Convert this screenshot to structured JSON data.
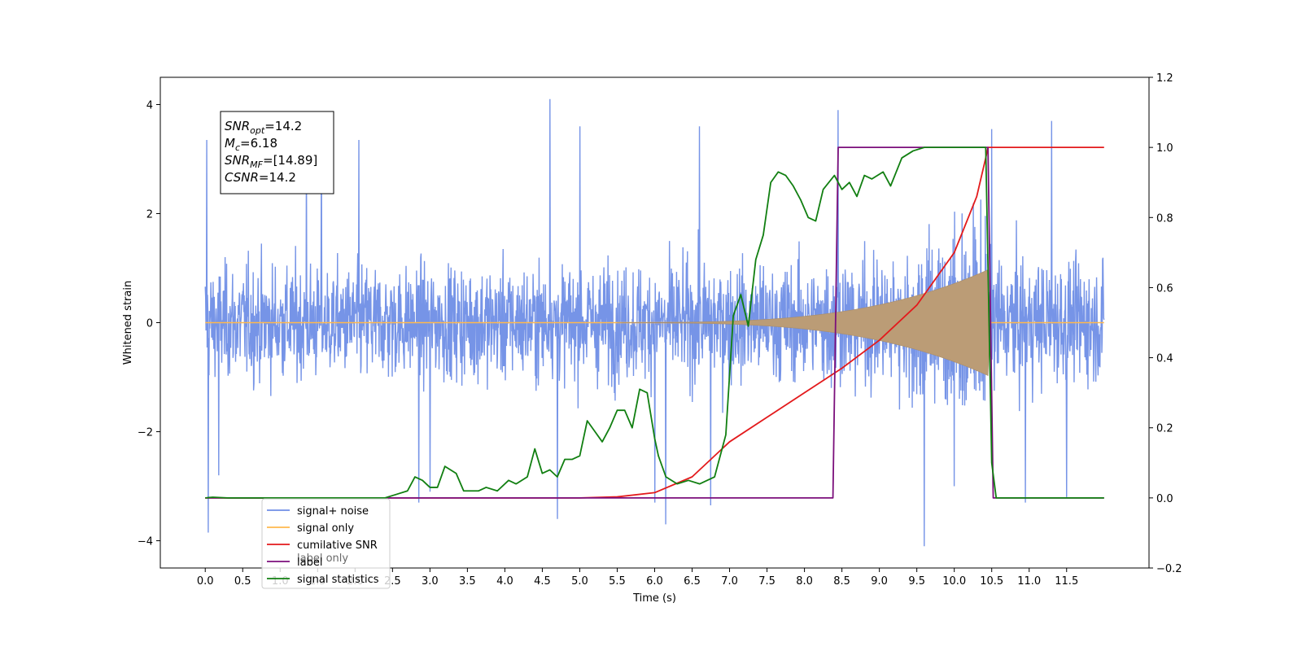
{
  "chart_data": {
    "type": "line",
    "title": "",
    "xlabel": "Time (s)",
    "ylabel": "Whitened strain",
    "y2label": "",
    "xlim": [
      -0.6,
      12.6
    ],
    "ylim": [
      -4.5,
      4.5
    ],
    "y2lim": [
      -0.2,
      1.2
    ],
    "xticks": [
      "0.0",
      "0.5",
      "1.0",
      "1.5",
      "2.0",
      "2.5",
      "3.0",
      "3.5",
      "4.0",
      "4.5",
      "5.0",
      "5.5",
      "6.0",
      "6.5",
      "7.0",
      "7.5",
      "8.0",
      "8.5",
      "9.0",
      "9.5",
      "10.0",
      "10.5",
      "11.0",
      "11.5"
    ],
    "yticks": [
      "−4",
      "−2",
      "0",
      "2",
      "4"
    ],
    "y2ticks": [
      "−0.2",
      "0.0",
      "0.2",
      "0.4",
      "0.6",
      "0.8",
      "1.0",
      "1.2"
    ],
    "grid": false,
    "legend_position": "lower-left",
    "annotation": {
      "lines": [
        {
          "sym": "SNR",
          "sub": "opt",
          "value": "=14.2"
        },
        {
          "sym": "M",
          "sub": "c",
          "value": "=6.18"
        },
        {
          "sym": "SNR",
          "sub": "MF",
          "value": "=[14.89]"
        },
        {
          "sym": "CSNR",
          "sub": "",
          "value": "=14.2"
        }
      ]
    },
    "series": [
      {
        "name": "signal+ noise",
        "color": "#6f8ee6",
        "axis": "left",
        "x_range": [
          0.0,
          12.0
        ],
        "envelope": [
          1.7,
          1.8,
          1.75,
          1.7,
          1.8,
          1.7,
          1.75,
          1.8,
          1.75,
          1.7,
          1.8,
          1.75,
          1.8,
          1.85,
          1.8,
          1.8,
          1.85,
          1.9,
          1.9,
          1.95,
          2.0,
          2.0,
          1.9,
          1.8
        ],
        "peaks": [
          {
            "x": 0.02,
            "y": 3.35
          },
          {
            "x": 0.04,
            "y": -3.85
          },
          {
            "x": 0.18,
            "y": -2.8
          },
          {
            "x": 1.35,
            "y": 3.3
          },
          {
            "x": 1.55,
            "y": 3.3
          },
          {
            "x": 2.05,
            "y": 3.35
          },
          {
            "x": 2.85,
            "y": -3.3
          },
          {
            "x": 3.0,
            "y": -3.1
          },
          {
            "x": 4.6,
            "y": 4.1
          },
          {
            "x": 4.7,
            "y": -3.6
          },
          {
            "x": 5.0,
            "y": 3.6
          },
          {
            "x": 6.0,
            "y": -3.3
          },
          {
            "x": 6.15,
            "y": -3.7
          },
          {
            "x": 6.6,
            "y": 3.6
          },
          {
            "x": 6.75,
            "y": -3.35
          },
          {
            "x": 8.45,
            "y": 3.9
          },
          {
            "x": 9.6,
            "y": -4.1
          },
          {
            "x": 10.0,
            "y": -3.0
          },
          {
            "x": 10.5,
            "y": 3.55
          },
          {
            "x": 10.95,
            "y": -3.3
          },
          {
            "x": 11.3,
            "y": 3.7
          },
          {
            "x": 11.5,
            "y": -3.2
          }
        ]
      },
      {
        "name": "signal only",
        "color": "#ffb84d",
        "axis": "left",
        "chirp": {
          "t_start": 5.5,
          "t_merge": 10.45,
          "amp_max": 0.95
        },
        "fill_color": "#bb9c76"
      },
      {
        "name": "cumilative SNR",
        "color": "#e31a1c",
        "axis": "right",
        "x": [
          0.0,
          5.0,
          5.5,
          6.0,
          6.5,
          7.0,
          7.5,
          8.0,
          8.5,
          9.0,
          9.5,
          10.0,
          10.3,
          10.42,
          10.45,
          12.0
        ],
        "y": [
          0.0,
          0.0,
          0.003,
          0.015,
          0.06,
          0.16,
          0.23,
          0.3,
          0.37,
          0.45,
          0.55,
          0.7,
          0.86,
          0.97,
          1.0,
          1.0
        ]
      },
      {
        "name": "label",
        "color": "#7b0f7b",
        "axis": "right",
        "x": [
          0.0,
          8.38,
          8.45,
          10.45,
          10.52,
          12.0
        ],
        "y": [
          0.0,
          0.0,
          1.0,
          1.0,
          0.0,
          0.0
        ]
      },
      {
        "name": "signal statistics",
        "color": "#117f11",
        "axis": "right",
        "x": [
          0.0,
          0.1,
          0.3,
          0.6,
          1.0,
          2.0,
          2.4,
          2.55,
          2.7,
          2.8,
          2.9,
          3.0,
          3.1,
          3.2,
          3.35,
          3.45,
          3.55,
          3.65,
          3.75,
          3.9,
          4.05,
          4.15,
          4.3,
          4.4,
          4.5,
          4.6,
          4.7,
          4.8,
          4.9,
          5.0,
          5.1,
          5.2,
          5.3,
          5.4,
          5.5,
          5.6,
          5.7,
          5.8,
          5.9,
          6.0,
          6.05,
          6.15,
          6.3,
          6.45,
          6.6,
          6.8,
          6.95,
          7.05,
          7.15,
          7.25,
          7.35,
          7.45,
          7.55,
          7.65,
          7.75,
          7.85,
          7.95,
          8.05,
          8.15,
          8.25,
          8.4,
          8.5,
          8.6,
          8.7,
          8.8,
          8.9,
          9.05,
          9.15,
          9.3,
          9.45,
          9.6,
          9.8,
          10.0,
          10.2,
          10.35,
          10.42,
          10.5,
          10.56,
          10.62,
          11.0,
          12.0
        ],
        "y": [
          0.0,
          0.002,
          0.0,
          0.0,
          0.0,
          0.0,
          0.0,
          0.01,
          0.02,
          0.06,
          0.05,
          0.03,
          0.03,
          0.09,
          0.07,
          0.02,
          0.02,
          0.02,
          0.03,
          0.02,
          0.05,
          0.04,
          0.06,
          0.14,
          0.07,
          0.08,
          0.06,
          0.11,
          0.11,
          0.12,
          0.22,
          0.19,
          0.16,
          0.2,
          0.25,
          0.25,
          0.2,
          0.31,
          0.3,
          0.17,
          0.12,
          0.06,
          0.04,
          0.05,
          0.04,
          0.06,
          0.18,
          0.52,
          0.58,
          0.49,
          0.68,
          0.75,
          0.9,
          0.93,
          0.92,
          0.89,
          0.85,
          0.8,
          0.79,
          0.88,
          0.92,
          0.88,
          0.9,
          0.86,
          0.92,
          0.91,
          0.93,
          0.89,
          0.97,
          0.99,
          1.0,
          1.0,
          1.0,
          1.0,
          1.0,
          1.0,
          0.1,
          0.0,
          0.0,
          0.0,
          0.0
        ]
      }
    ],
    "legend_entries": [
      "signal+ noise",
      "signal only",
      "cumilative SNR",
      "label",
      "signal statistics"
    ],
    "hidden_legend_text": "label only"
  }
}
